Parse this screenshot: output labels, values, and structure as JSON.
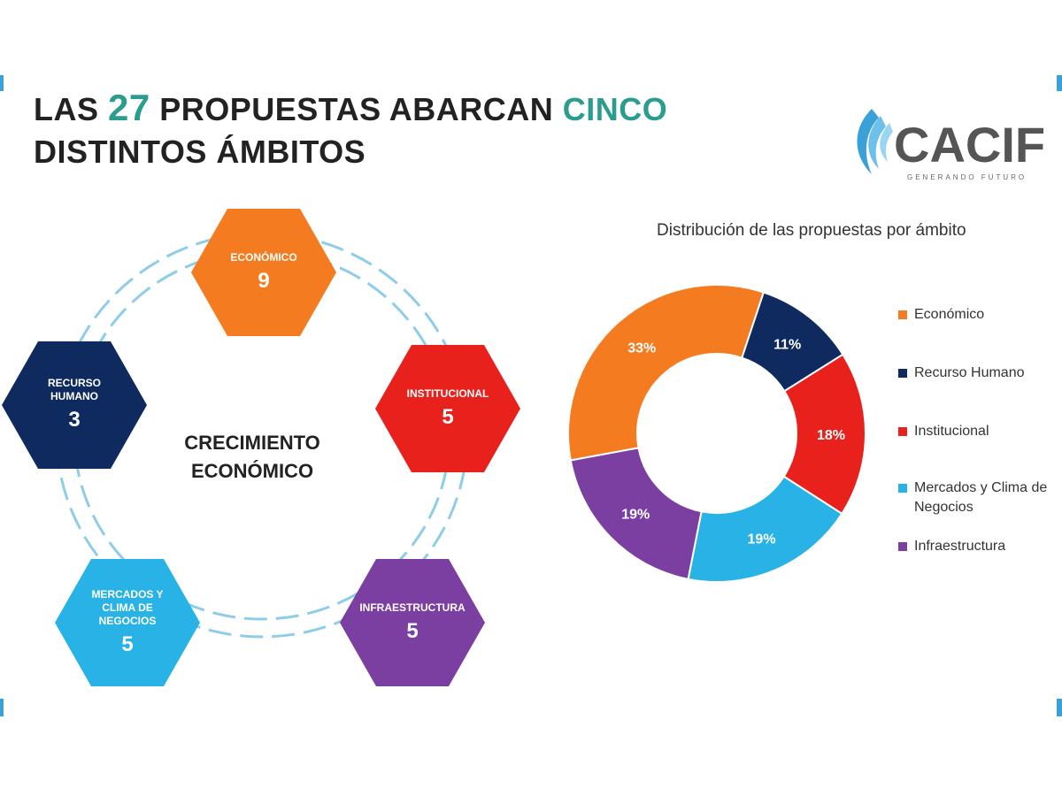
{
  "title": {
    "part1": "LAS ",
    "number": "27",
    "part2": " PROPUESTAS ABARCAN ",
    "highlight": "CINCO",
    "line2": "DISTINTOS ÁMBITOS"
  },
  "logo": {
    "name": "CACIF",
    "tagline": "GENERANDO FUTURO"
  },
  "diagram": {
    "center": {
      "line1": "CRECIMIENTO",
      "line2": "ECONÓMICO"
    },
    "hexagons": [
      {
        "label_lines": [
          "ECONÓMICO"
        ],
        "value": "9",
        "color": "#f47b20"
      },
      {
        "label_lines": [
          "INSTITUCIONAL"
        ],
        "value": "5",
        "color": "#e8211d"
      },
      {
        "label_lines": [
          "INFRAESTRUCTURA"
        ],
        "value": "5",
        "color": "#7a3fa0"
      },
      {
        "label_lines": [
          "MERCADOS Y",
          "CLIMA DE",
          "NEGOCIOS"
        ],
        "value": "5",
        "color": "#29b2e6"
      },
      {
        "label_lines": [
          "RECURSO",
          "HUMANO"
        ],
        "value": "3",
        "color": "#0f2a5e"
      }
    ]
  },
  "chart_data": {
    "type": "pie",
    "title": "Distribución de las propuestas por ámbito",
    "categories": [
      "Económico",
      "Recurso Humano",
      "Institucional",
      "Mercados y Clima de Negocios",
      "Infraestructura"
    ],
    "values": [
      33,
      11,
      18,
      19,
      19
    ],
    "labels": [
      "33%",
      "11%",
      "18%",
      "19%",
      "19%"
    ],
    "colors": [
      "#f47b20",
      "#0f2a5e",
      "#e8211d",
      "#29b2e6",
      "#7a3fa0"
    ],
    "donut": true,
    "legend_position": "right"
  }
}
